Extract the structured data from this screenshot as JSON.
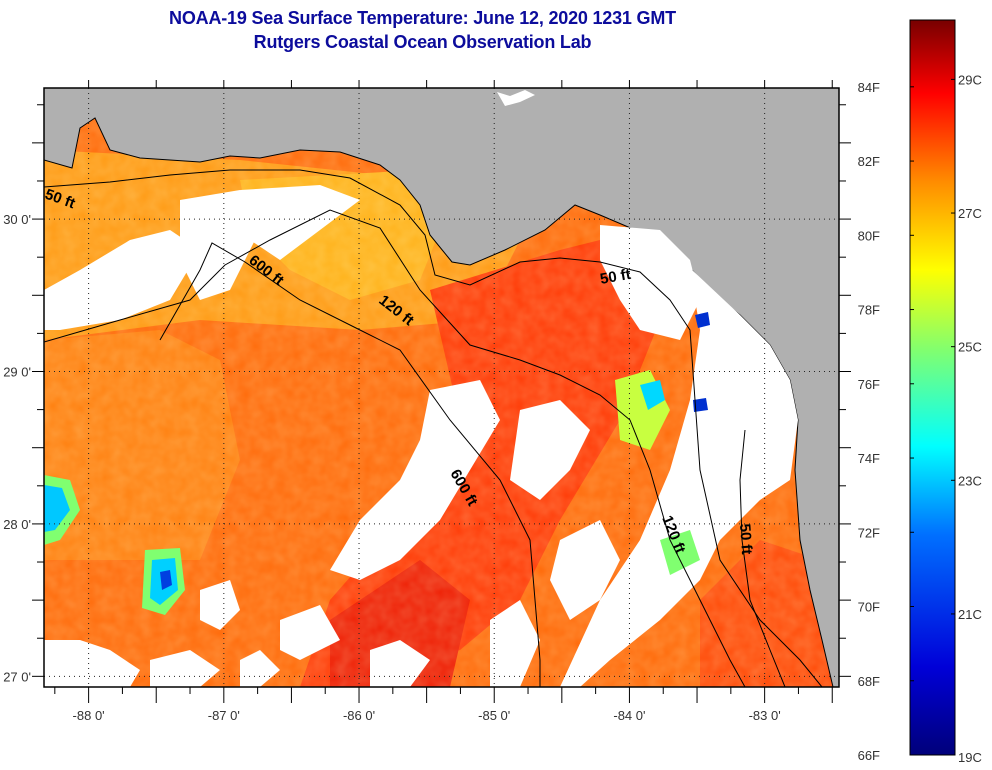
{
  "header": {
    "title_line1": "NOAA-19 Sea Surface Temperature:  June 12, 2020 1231 GMT",
    "title_line2": "Rutgers Coastal Ocean Observation Lab"
  },
  "map": {
    "lon_range": [
      -88.33,
      -82.45
    ],
    "lat_range": [
      26.93,
      30.86
    ],
    "lon_ticks": [
      {
        "value": -88,
        "label": "-88 0'"
      },
      {
        "value": -87,
        "label": "-87 0'"
      },
      {
        "value": -86,
        "label": "-86 0'"
      },
      {
        "value": -85,
        "label": "-85 0'"
      },
      {
        "value": -84,
        "label": "-84 0'"
      },
      {
        "value": -83,
        "label": "-83 0'"
      }
    ],
    "lat_ticks": [
      {
        "value": 30,
        "label": "30 0'"
      },
      {
        "value": 29,
        "label": "29 0'"
      },
      {
        "value": 28,
        "label": "28 0'"
      },
      {
        "value": 27,
        "label": "27 0'"
      }
    ],
    "depth_labels": [
      {
        "text": "50 ft"
      },
      {
        "text": "600 ft"
      },
      {
        "text": "120 ft"
      },
      {
        "text": "50 ft"
      },
      {
        "text": "600 ft"
      },
      {
        "text": "120 ft"
      },
      {
        "text": "50 ft"
      }
    ],
    "colors": {
      "land": "#b0b0b0",
      "cloud": "#ffffff",
      "frame": "#000000"
    }
  },
  "colorbar": {
    "range_f": [
      66,
      85.8
    ],
    "fahrenheit_labels": [
      "84F",
      "82F",
      "80F",
      "78F",
      "76F",
      "74F",
      "72F",
      "70F",
      "68F",
      "66F"
    ],
    "fahrenheit_values": [
      84,
      82,
      80,
      78,
      76,
      74,
      72,
      70,
      68,
      66
    ],
    "celsius_labels": [
      "29C",
      "27C",
      "25C",
      "23C",
      "21C",
      "19C"
    ],
    "celsius_values": [
      29,
      27,
      25,
      23,
      21,
      19
    ],
    "stops": [
      "#00007f",
      "#0000ff",
      "#007fff",
      "#00ffff",
      "#7fff7f",
      "#ffff00",
      "#ff7f00",
      "#ff0000",
      "#7f0000"
    ]
  }
}
